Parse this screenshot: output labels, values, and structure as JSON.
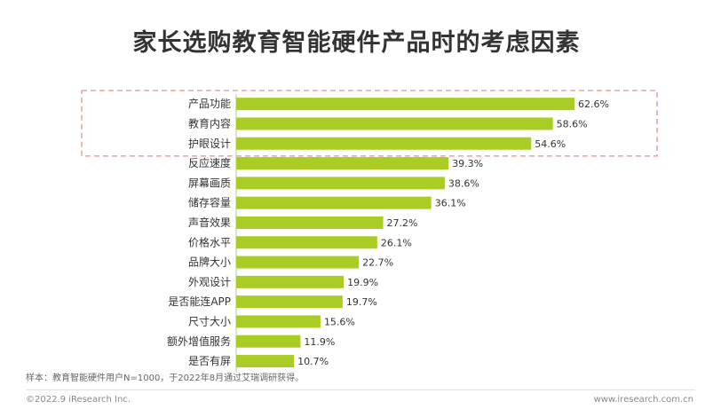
{
  "page": {
    "title": "家长选购教育智能硬件产品时的考虑因素",
    "note": "样本：教育智能硬件用户N=1000，于2022年8月通过艾瑞调研获得。",
    "copyright": "©2022.9 iResearch Inc.",
    "website": "www.iresearch.com.cn"
  },
  "chart_data": {
    "type": "bar",
    "orientation": "horizontal",
    "title": "家长选购教育智能硬件产品时的考虑因素",
    "categories": [
      "产品功能",
      "教育内容",
      "护眼设计",
      "反应速度",
      "屏幕画质",
      "储存容量",
      "声音效果",
      "价格水平",
      "品牌大小",
      "外观设计",
      "是否能连APP",
      "尺寸大小",
      "额外增值服务",
      "是否有屏"
    ],
    "values": [
      62.6,
      58.6,
      54.6,
      39.3,
      38.6,
      36.1,
      27.2,
      26.1,
      22.7,
      19.9,
      19.7,
      15.6,
      11.9,
      10.7
    ],
    "value_labels": [
      "62.6%",
      "58.6%",
      "54.6%",
      "39.3%",
      "38.6%",
      "36.1%",
      "27.2%",
      "26.1%",
      "22.7%",
      "19.9%",
      "19.7%",
      "15.6%",
      "11.9%",
      "10.7%"
    ],
    "unit": "%",
    "xlim": [
      0,
      100
    ],
    "grid": false,
    "legend": "none",
    "highlighted_categories": [
      "产品功能",
      "教育内容",
      "护眼设计"
    ],
    "colors": {
      "bar": "#a9cd25",
      "highlight_box": "#e88e8e",
      "axis": "#bfbfbf"
    }
  }
}
